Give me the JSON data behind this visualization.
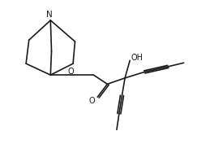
{
  "bg_color": "#ffffff",
  "line_color": "#1a1a1a",
  "lw": 1.2,
  "fs": 7.0,
  "figsize": [
    2.43,
    1.88
  ],
  "dpi": 100,
  "xlim": [
    0,
    10
  ],
  "ylim": [
    0,
    10
  ]
}
